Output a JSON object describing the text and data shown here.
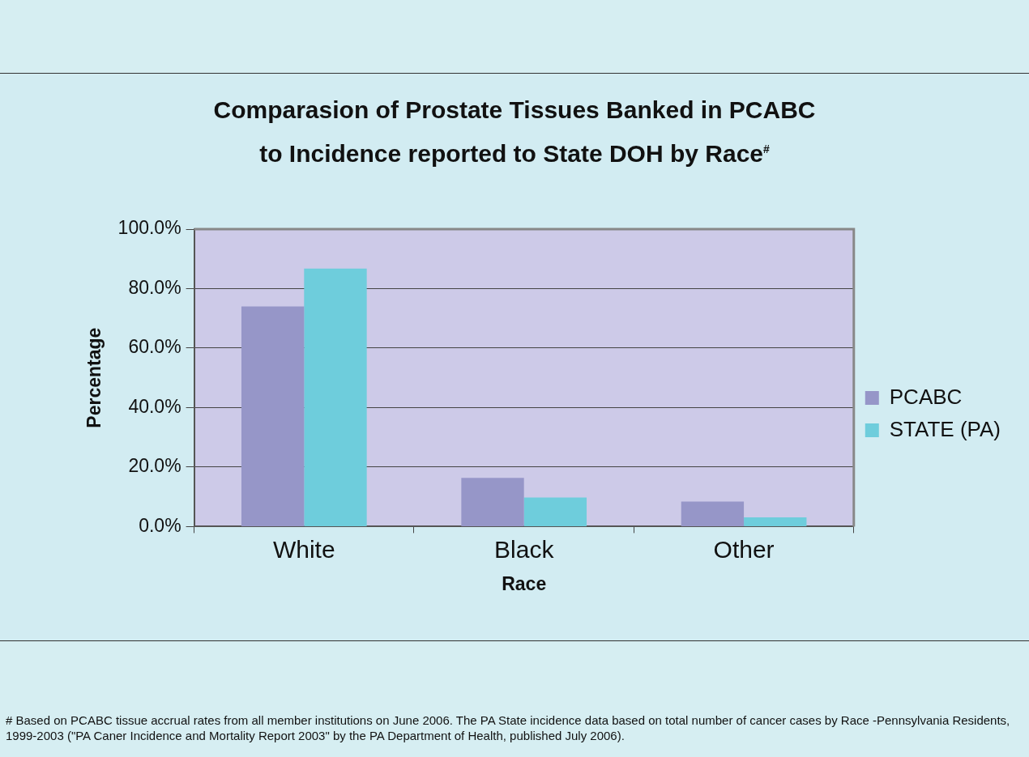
{
  "chart_data": {
    "type": "bar",
    "title": "Comparasion of Prostate Tissues Banked in PCABC\nto Incidence reported to State DOH by Race$^{#}$",
    "xlabel": "Race",
    "ylabel": "Percentage",
    "categories": [
      "White",
      "Black",
      "Other"
    ],
    "series": [
      {
        "name": "PCABC",
        "color": "#9696c8",
        "values": [
          74.0,
          16.4,
          8.4
        ]
      },
      {
        "name": "STATE (PA)",
        "color": "#6ecddc",
        "values": [
          86.7,
          9.8,
          3.1
        ]
      }
    ],
    "ylim": [
      0,
      100
    ],
    "yticks": [
      {
        "value": 0,
        "label": "0.0%"
      },
      {
        "value": 20,
        "label": "20.0%"
      },
      {
        "value": 40,
        "label": "40.0%"
      },
      {
        "value": 60,
        "label": "60.0%"
      },
      {
        "value": 80,
        "label": "80.0%"
      },
      {
        "value": 100,
        "label": "100.0%"
      }
    ],
    "grid": "y",
    "legend": "right",
    "annotations": [
      "# Based on PCABC tissue accrual rates from all member institutions on June 2006.  The PA State incidence data based on total number of cancer cases by Race -Pennsylvania Residents, 1999-2003 (\"PA Caner Incidence and Mortality Report 2003\" by the PA Department of Health, published July 2006)."
    ]
  }
}
